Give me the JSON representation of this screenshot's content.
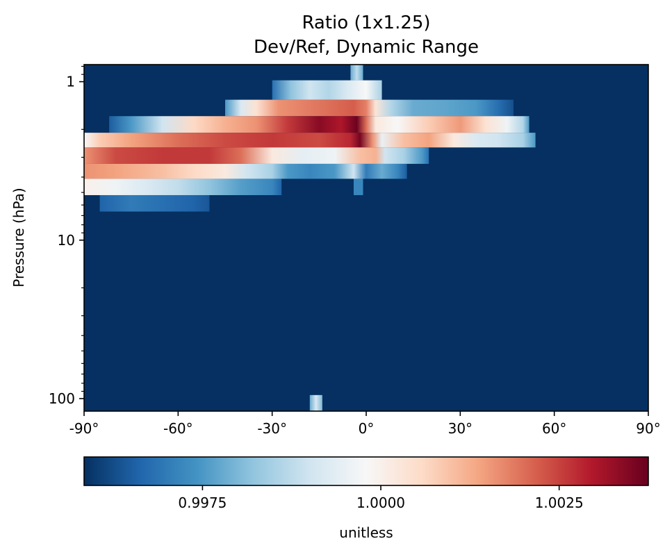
{
  "chart_data": {
    "type": "heatmap",
    "title_lines": [
      "Ratio (1x1.25)",
      "Dev/Ref, Dynamic Range"
    ],
    "ylabel": "Pressure (hPa)",
    "xlabel": "",
    "x_range": [
      -90,
      90
    ],
    "y_range_hpa": [
      120,
      0.78
    ],
    "y_scale": "log",
    "x_ticks": [
      {
        "value": -90,
        "label": "-90°"
      },
      {
        "value": -60,
        "label": "-60°"
      },
      {
        "value": -30,
        "label": "-30°"
      },
      {
        "value": 0,
        "label": "0°"
      },
      {
        "value": 30,
        "label": "30°"
      },
      {
        "value": 60,
        "label": "60°"
      },
      {
        "value": 90,
        "label": "90°"
      }
    ],
    "y_ticks": [
      {
        "value": 1,
        "label": "1"
      },
      {
        "value": 10,
        "label": "10"
      },
      {
        "value": 100,
        "label": "100"
      }
    ],
    "colormap": "RdBu_r",
    "colormap_stops": [
      "#053061",
      "#2166ac",
      "#4393c3",
      "#92c5de",
      "#d1e5f0",
      "#f7f7f7",
      "#fddbc7",
      "#f4a582",
      "#d6604d",
      "#b2182b",
      "#67001f"
    ],
    "colorbar": {
      "range": [
        0.99584,
        1.00375
      ],
      "ticks": [
        {
          "value": 0.9975,
          "label": "0.9975"
        },
        {
          "value": 1.0,
          "label": "1.0000"
        },
        {
          "value": 1.0025,
          "label": "1.0025"
        }
      ],
      "label": "unitless",
      "orientation": "horizontal"
    },
    "background_value": 0.99584,
    "bands": [
      {
        "p_top": 0.78,
        "p_bottom": 0.98,
        "lat_start": -5,
        "lat_end": -1,
        "stops": [
          [
            -5,
            0.9978
          ],
          [
            -3,
            0.9988
          ],
          [
            -1,
            0.9978
          ]
        ]
      },
      {
        "p_top": 0.98,
        "p_bottom": 1.3,
        "lat_start": -30,
        "lat_end": 5,
        "stops": [
          [
            -30,
            0.9968
          ],
          [
            -24,
            0.9982
          ],
          [
            -18,
            0.999
          ],
          [
            -12,
            0.9986
          ],
          [
            -6,
            0.9992
          ],
          [
            0,
            0.9998
          ],
          [
            5,
            0.9985
          ]
        ]
      },
      {
        "p_top": 1.3,
        "p_bottom": 1.65,
        "lat_start": -45,
        "lat_end": 47,
        "stops": [
          [
            -45,
            0.9975
          ],
          [
            -40,
            0.9992
          ],
          [
            -35,
            1.0004
          ],
          [
            -28,
            1.0016
          ],
          [
            -20,
            1.0018
          ],
          [
            -12,
            1.002
          ],
          [
            -4,
            1.0022
          ],
          [
            0,
            1.0018
          ],
          [
            3,
            1.0003
          ],
          [
            8,
            0.9986
          ],
          [
            15,
            0.9978
          ],
          [
            25,
            0.9977
          ],
          [
            35,
            0.9975
          ],
          [
            42,
            0.9968
          ],
          [
            47,
            0.9963
          ]
        ]
      },
      {
        "p_top": 1.65,
        "p_bottom": 2.1,
        "lat_start": -82,
        "lat_end": 52,
        "stops": [
          [
            -82,
            0.9965
          ],
          [
            -75,
            0.9975
          ],
          [
            -65,
            0.999
          ],
          [
            -55,
            1.0006
          ],
          [
            -45,
            1.0012
          ],
          [
            -35,
            1.0016
          ],
          [
            -25,
            1.0026
          ],
          [
            -15,
            1.0034
          ],
          [
            -8,
            1.003
          ],
          [
            -3,
            1.0037
          ],
          [
            0,
            1.002
          ],
          [
            3,
            1.0002
          ],
          [
            10,
            0.9998
          ],
          [
            20,
            1.0008
          ],
          [
            30,
            1.0015
          ],
          [
            38,
            1.0004
          ],
          [
            45,
            0.9996
          ],
          [
            50,
            0.9986
          ],
          [
            52,
            0.9975
          ]
        ]
      },
      {
        "p_top": 2.1,
        "p_bottom": 2.6,
        "lat_start": -90,
        "lat_end": 54,
        "stops": [
          [
            -90,
            0.9998
          ],
          [
            -85,
            1.0008
          ],
          [
            -75,
            1.0014
          ],
          [
            -60,
            1.002
          ],
          [
            -45,
            1.0024
          ],
          [
            -30,
            1.0026
          ],
          [
            -15,
            1.0024
          ],
          [
            -5,
            1.0028
          ],
          [
            -2,
            1.0036
          ],
          [
            2,
            1.0016
          ],
          [
            5,
            0.9995
          ],
          [
            12,
            1.001
          ],
          [
            20,
            1.0014
          ],
          [
            28,
            1.0002
          ],
          [
            35,
            0.9992
          ],
          [
            42,
            0.999
          ],
          [
            50,
            0.9985
          ],
          [
            54,
            0.9975
          ]
        ]
      },
      {
        "p_top": 2.6,
        "p_bottom": 3.3,
        "lat_start": -90,
        "lat_end": 20,
        "stops": [
          [
            -90,
            1.0016
          ],
          [
            -80,
            1.0024
          ],
          [
            -65,
            1.0026
          ],
          [
            -50,
            1.0026
          ],
          [
            -40,
            1.002
          ],
          [
            -30,
            1.0002
          ],
          [
            -20,
            0.9994
          ],
          [
            -10,
            0.9996
          ],
          [
            -2,
            1.001
          ],
          [
            3,
            1.0012
          ],
          [
            6,
            0.999
          ],
          [
            12,
            0.9985
          ],
          [
            18,
            0.9975
          ],
          [
            20,
            0.9968
          ]
        ]
      },
      {
        "p_top": 3.3,
        "p_bottom": 4.1,
        "lat_start": -90,
        "lat_end": 13,
        "stops": [
          [
            -90,
            1.0016
          ],
          [
            -80,
            1.0014
          ],
          [
            -65,
            1.001
          ],
          [
            -55,
            1.0006
          ],
          [
            -45,
            1.0002
          ],
          [
            -38,
            0.999
          ],
          [
            -30,
            0.9985
          ],
          [
            -25,
            0.9975
          ],
          [
            -18,
            0.9972
          ],
          [
            -10,
            0.9975
          ],
          [
            -4,
            0.999
          ],
          [
            0,
            0.997
          ],
          [
            5,
            0.9978
          ],
          [
            10,
            0.9972
          ],
          [
            13,
            0.9965
          ]
        ]
      },
      {
        "p_top": 4.1,
        "p_bottom": 5.2,
        "lat_start": -90,
        "lat_end": -27,
        "stops": [
          [
            -90,
            1.0
          ],
          [
            -80,
            0.9996
          ],
          [
            -70,
            0.9992
          ],
          [
            -60,
            0.9988
          ],
          [
            -50,
            0.9982
          ],
          [
            -40,
            0.9976
          ],
          [
            -30,
            0.9972
          ],
          [
            -27,
            0.9966
          ]
        ]
      },
      {
        "p_top": 4.1,
        "p_bottom": 5.2,
        "lat_start": -4,
        "lat_end": -1,
        "stops": [
          [
            -4,
            0.9972
          ],
          [
            -1,
            0.9972
          ]
        ]
      },
      {
        "p_top": 5.2,
        "p_bottom": 6.6,
        "lat_start": -85,
        "lat_end": -50,
        "stops": [
          [
            -85,
            0.9966
          ],
          [
            -75,
            0.997
          ],
          [
            -65,
            0.9968
          ],
          [
            -55,
            0.9966
          ],
          [
            -50,
            0.9964
          ]
        ]
      },
      {
        "p_top": 95,
        "p_bottom": 120,
        "lat_start": -18,
        "lat_end": -14,
        "stops": [
          [
            -18,
            0.9978
          ],
          [
            -16,
            0.9992
          ],
          [
            -14,
            0.998
          ]
        ]
      }
    ]
  }
}
